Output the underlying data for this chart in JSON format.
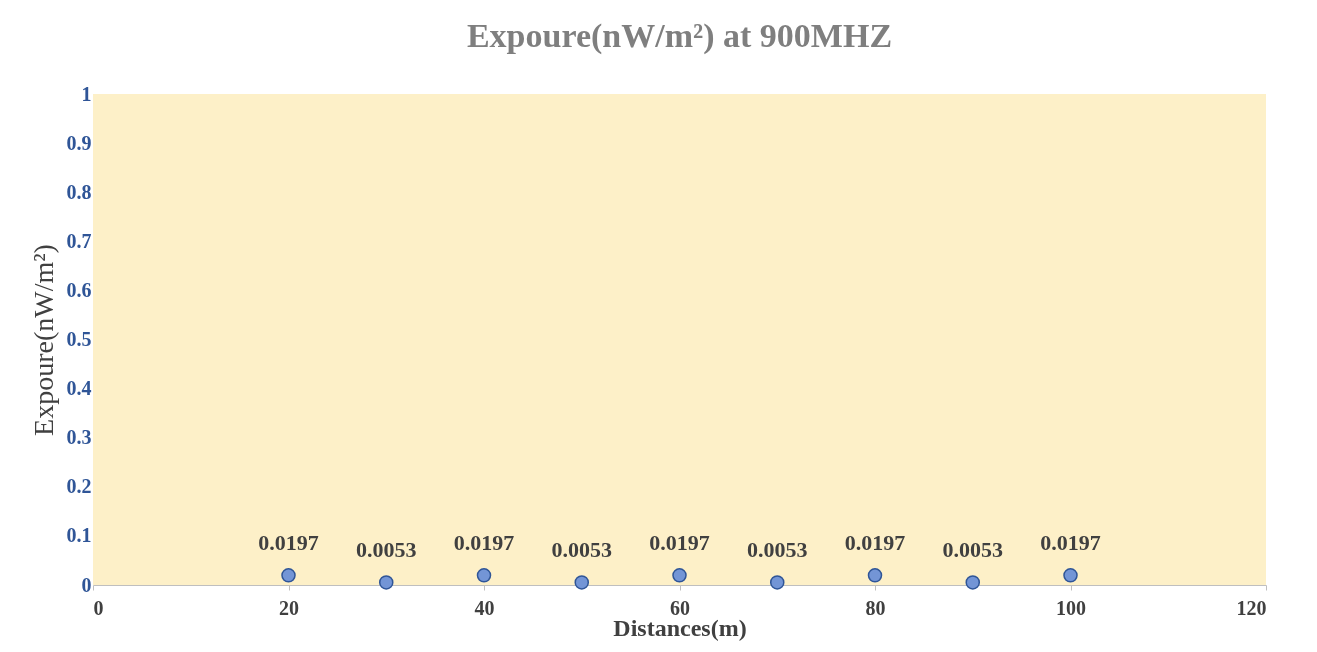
{
  "chart_data": {
    "type": "scatter",
    "title": "Expoure(nW/m²)  at 900MHZ",
    "xlabel": "Distances(m)",
    "ylabel": "Expoure(nW/m²)",
    "x": [
      20,
      30,
      40,
      50,
      60,
      70,
      80,
      90,
      100
    ],
    "series": [
      {
        "color": "#7395d6",
        "values": [
          0.0197,
          0.0053,
          0.0197,
          0.0053,
          0.0197,
          0.0053,
          0.0197,
          0.0053,
          0.0197
        ]
      }
    ],
    "xlim": [
      0,
      120
    ],
    "xticks": [
      0,
      20,
      40,
      60,
      80,
      100,
      120
    ],
    "ylim": [
      0,
      1
    ],
    "yticks": [
      0,
      0.1,
      0.2,
      0.3,
      0.4,
      0.5,
      0.6,
      0.7,
      0.8,
      0.9,
      1
    ],
    "grid": false,
    "legend": false,
    "marker": "circle",
    "data_labels": true
  }
}
